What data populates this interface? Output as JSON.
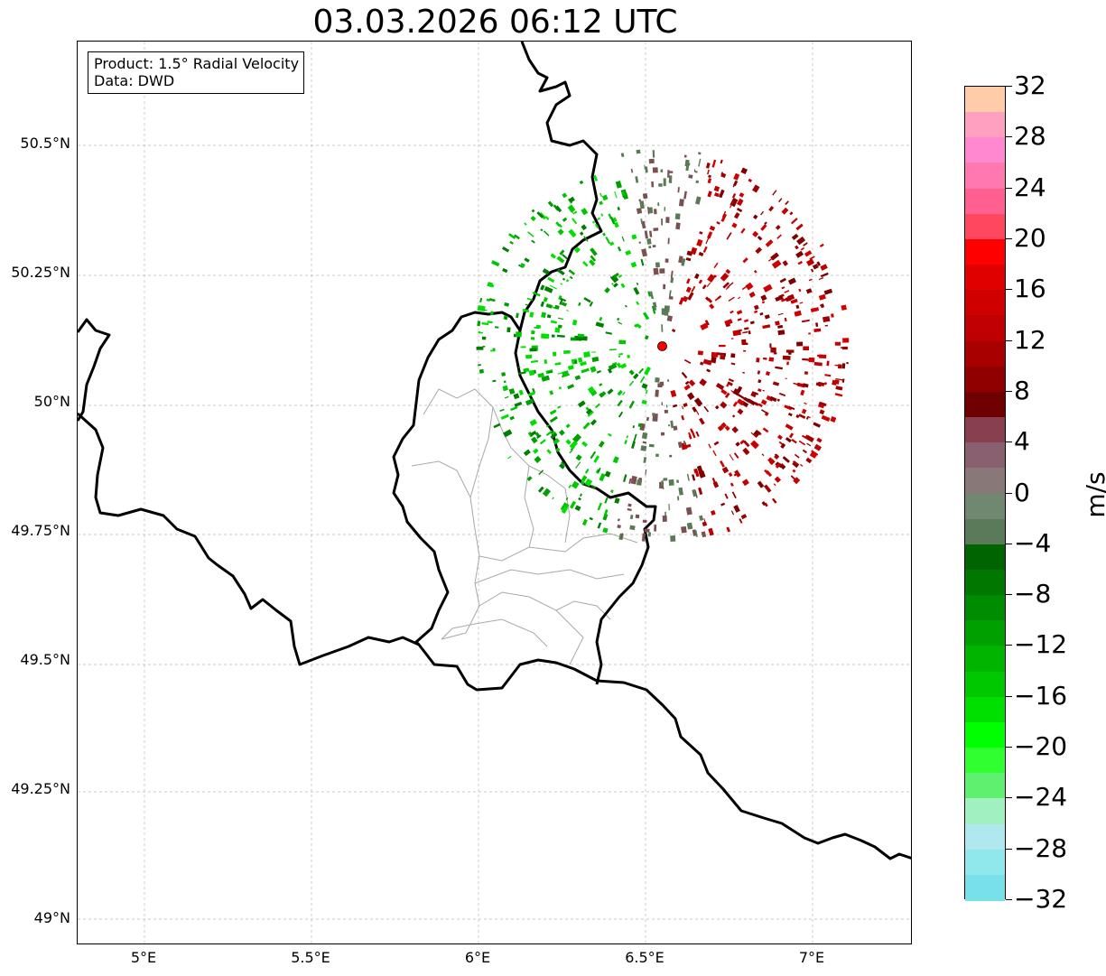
{
  "title": "03.03.2026 06:12 UTC",
  "info_box": {
    "product": "Product: 1.5° Radial Velocity",
    "source": "Data: DWD"
  },
  "map": {
    "lon_range": [
      4.8,
      7.3
    ],
    "lat_range": [
      48.95,
      50.7
    ],
    "lat_ticks": [
      "50.5°N",
      "50.25°N",
      "50°N",
      "49.75°N",
      "49.5°N",
      "49.25°N",
      "49°N"
    ],
    "lat_values": [
      50.5,
      50.25,
      50.0,
      49.75,
      49.5,
      49.25,
      49.0
    ],
    "lon_ticks": [
      "5°E",
      "5.5°E",
      "6°E",
      "6.5°E",
      "7°E"
    ],
    "lon_values": [
      5.0,
      5.5,
      6.0,
      6.5,
      7.0
    ],
    "radar_site": {
      "lon": 6.55,
      "lat": 50.11,
      "color": "#ff0000"
    },
    "echo_colors": {
      "approaching": [
        "#00c800",
        "#00a000",
        "#008000",
        "#00e000",
        "#5a7a55"
      ],
      "receding": [
        "#c00000",
        "#a00000",
        "#800000",
        "#d00000",
        "#7a5050"
      ]
    }
  },
  "colorbar": {
    "unit": "m/s",
    "min": -32,
    "max": 32,
    "tick_labels": [
      "32",
      "28",
      "24",
      "20",
      "16",
      "12",
      "8",
      "4",
      "0",
      "−4",
      "−8",
      "−12",
      "−16",
      "−20",
      "−24",
      "−28",
      "−32"
    ],
    "tick_values": [
      32,
      28,
      24,
      20,
      16,
      12,
      8,
      4,
      0,
      -4,
      -8,
      -12,
      -16,
      -20,
      -24,
      -28,
      -32
    ],
    "colors_top_to_bottom": [
      "#ffccaa",
      "#ffa0c0",
      "#ff88d0",
      "#ff78b0",
      "#ff6090",
      "#ff4860",
      "#ff0000",
      "#e00000",
      "#d00000",
      "#c00000",
      "#a80000",
      "#900000",
      "#700000",
      "#884050",
      "#886070",
      "#887878",
      "#708870",
      "#5a7a5a",
      "#006400",
      "#007800",
      "#008c00",
      "#00a000",
      "#00b400",
      "#00c800",
      "#00e000",
      "#00ff00",
      "#30ff30",
      "#60f070",
      "#a0f0c0",
      "#b0e8f0",
      "#90e8ec",
      "#78e0e8"
    ]
  }
}
